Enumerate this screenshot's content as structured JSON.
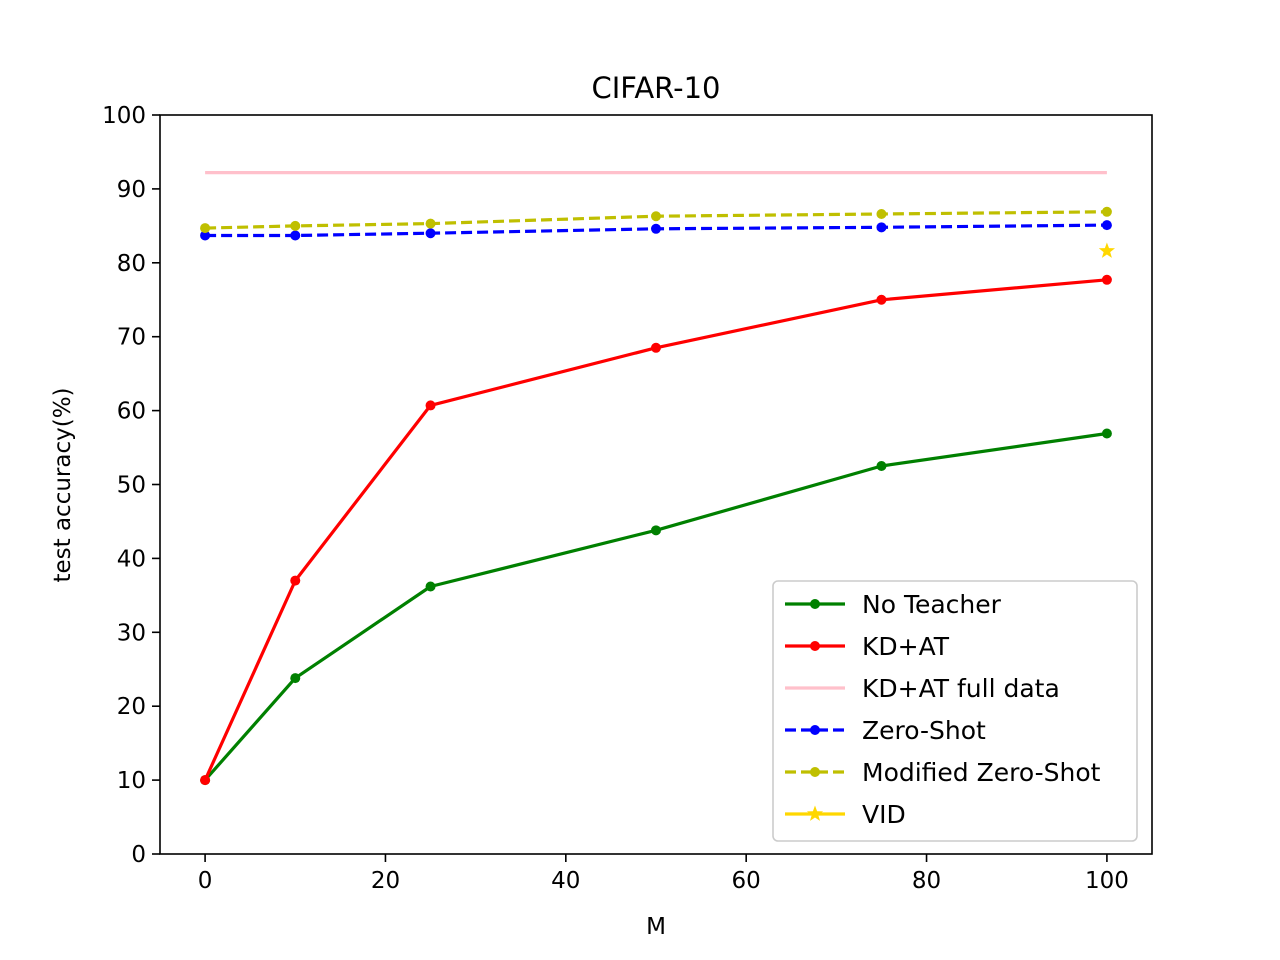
{
  "chart_data": {
    "type": "line",
    "title": "CIFAR-10",
    "xlabel": "M",
    "ylabel": "test accuracy(%)",
    "xlim": [
      -5,
      105
    ],
    "ylim": [
      0,
      100
    ],
    "xticks": [
      0,
      20,
      40,
      60,
      80,
      100
    ],
    "yticks": [
      0,
      10,
      20,
      30,
      40,
      50,
      60,
      70,
      80,
      90,
      100
    ],
    "grid": false,
    "legend_position": "lower-right",
    "series": [
      {
        "name": "No Teacher",
        "color": "#008000",
        "style": "solid",
        "marker": "dot",
        "x": [
          0,
          10,
          25,
          50,
          75,
          100
        ],
        "y": [
          10.0,
          23.8,
          36.2,
          43.8,
          52.5,
          56.9
        ]
      },
      {
        "name": "KD+AT",
        "color": "#ff0000",
        "style": "solid",
        "marker": "dot",
        "x": [
          0,
          10,
          25,
          50,
          75,
          100
        ],
        "y": [
          10.0,
          37.0,
          60.7,
          68.5,
          75.0,
          77.7
        ]
      },
      {
        "name": "KD+AT full data",
        "color": "#ffc0cb",
        "style": "solid",
        "marker": "none",
        "x": [
          0,
          100
        ],
        "y": [
          92.2,
          92.2
        ]
      },
      {
        "name": "Zero-Shot",
        "color": "#0000ff",
        "style": "dashed",
        "marker": "dot",
        "x": [
          0,
          10,
          25,
          50,
          75,
          100
        ],
        "y": [
          83.7,
          83.7,
          84.0,
          84.6,
          84.8,
          85.1
        ]
      },
      {
        "name": "Modified Zero-Shot",
        "color": "#bfbf00",
        "style": "dashed",
        "marker": "dot",
        "x": [
          0,
          10,
          25,
          50,
          75,
          100
        ],
        "y": [
          84.7,
          85.0,
          85.3,
          86.3,
          86.6,
          86.9
        ]
      },
      {
        "name": "VID",
        "color": "#ffd700",
        "style": "solid",
        "marker": "star",
        "x": [
          100
        ],
        "y": [
          81.6
        ]
      }
    ]
  }
}
